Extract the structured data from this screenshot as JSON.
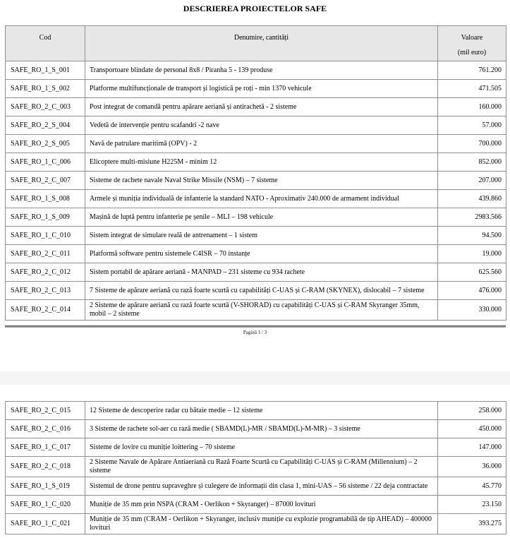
{
  "page1": {
    "title": "DESCRIEREA PROIECTELOR SAFE",
    "table": {
      "headers": {
        "cod": "Cod",
        "denumire": "Denumire, cantități",
        "valoare": "Valoare",
        "valoare_unit": "(mil euro)"
      },
      "rows": [
        {
          "cod": "SAFE_RO_1_S_001",
          "denumire": "Transportoare blindate de personal 8x8 / Piranha 5 - 139 produse",
          "valoare": "761.200"
        },
        {
          "cod": "SAFE_RO_1_S_002",
          "denumire": "Platforme multifuncționale de transport și logistică pe roți - min 1370 vehicule",
          "valoare": "471.505"
        },
        {
          "cod": "SAFE_RO_2_C_003",
          "denumire": "Post integrat de comandă pentru apărare aeriană și antirachetă - 2 sisteme",
          "valoare": "160.000"
        },
        {
          "cod": "SAFE_RO_2_S_004",
          "denumire": "Vedetă de intervenție pentru scafandri -2 nave",
          "valoare": "57.000"
        },
        {
          "cod": "SAFE_RO_2_S_005",
          "denumire": "Navă de patrulare maritimă (OPV) - 2",
          "valoare": "700.000"
        },
        {
          "cod": "SAFE_RO_1_C_006",
          "denumire": "Elicoptere multi-misiune H225M - minim 12",
          "valoare": "852.000"
        },
        {
          "cod": "SAFE_RO_2_C_007",
          "denumire": "Sisteme de rachete navale Naval Strike Missile (NSM) – 7 sisteme",
          "valoare": "207.000"
        },
        {
          "cod": "SAFE_RO_1_S_008",
          "denumire": "Armele și muniția individuală de infanterie la standard NATO - Aproximativ 240.000 de armament individual",
          "valoare": "439.860"
        },
        {
          "cod": "SAFE_RO_1_S_009",
          "denumire": "Mașină de luptă pentru infanterie pe șenile – MLI – 198 vehicule",
          "valoare": "2983.566"
        },
        {
          "cod": "SAFE_RO_1_C_010",
          "denumire": "Sistem integrat de simulare reală de antrenament – 1 sistem",
          "valoare": "94.500"
        },
        {
          "cod": "SAFE_RO_2_C_011",
          "denumire": "Platformă software pentru sistemele C4ISR – 70 instanțe",
          "valoare": "19.000"
        },
        {
          "cod": "SAFE_RO_2_C_012",
          "denumire": "Sistem portabil de apărare aeriană - MANPAD – 231 sisteme cu 934 rachete",
          "valoare": "625.560"
        },
        {
          "cod": "SAFE_RO_2_C_013",
          "denumire": "7 Sisteme de apărare aeriană cu rază foarte scurtă cu capabilități C-UAS și C-RAM (SKYNEX), dislocabil – 7 sisteme",
          "valoare": "476.000"
        },
        {
          "cod": "SAFE_RO_2_C_014",
          "denumire": "2 Sisteme de apărare aeriană cu rază foarte scurtă (V-SHORAD) cu capabilități C-UAS și C-RAM Skyranger 35mm, mobil – 2 sisteme",
          "valoare": "330.000"
        }
      ]
    },
    "footer": {
      "page_label": "Pagină 1 / 3"
    }
  },
  "page2": {
    "table": {
      "rows": [
        {
          "cod": "SAFE_RO_2_C_015",
          "denumire": "12 Sisteme de descoperire radar cu bătaie medie – 12 sisteme",
          "valoare": "258.000"
        },
        {
          "cod": "SAFE_RO_2_C_016",
          "denumire": "3 Sisteme de rachete sol-aer cu rază medie ( SBAMD(L)-MR / SBAMD(L)-M-MR) – 3 sisteme",
          "valoare": "450.000"
        },
        {
          "cod": "SAFE_RO_1_C_017",
          "denumire": "Sisteme de lovire cu muniție loittering – 70 sisteme",
          "valoare": "147.000"
        },
        {
          "cod": "SAFE_RO_2_C_018",
          "denumire": "2 Sisteme Navale de Apărare Antiaeriană cu Rază Foarte Scurtă cu Capabilități C-UAS și C-RAM (Millennium) – 2 sisteme",
          "valoare": "36.000"
        },
        {
          "cod": "SAFE_RO_1_S_019",
          "denumire": "Sistemul de drone pentru supraveghre și culegere de informații din clasa 1, mini-UAS – 56 sisteme / 22 deja contractate",
          "valoare": "45.770"
        },
        {
          "cod": "SAFE_RO_1_C_020",
          "denumire": "Muniție de 35 mm prin NSPA (CRAM - Oerlikon + Skyranger) – 87000 lovituri",
          "valoare": "23.150"
        },
        {
          "cod": "SAFE_RO_1_C_021",
          "denumire": "Muniție de 35 mm (CRAM - Oerlikon + Skyranger, inclusiv muniție cu explozie programabilă de tip AHEAD) – 400000 lovituri",
          "valoare": "393.275"
        }
      ]
    }
  }
}
